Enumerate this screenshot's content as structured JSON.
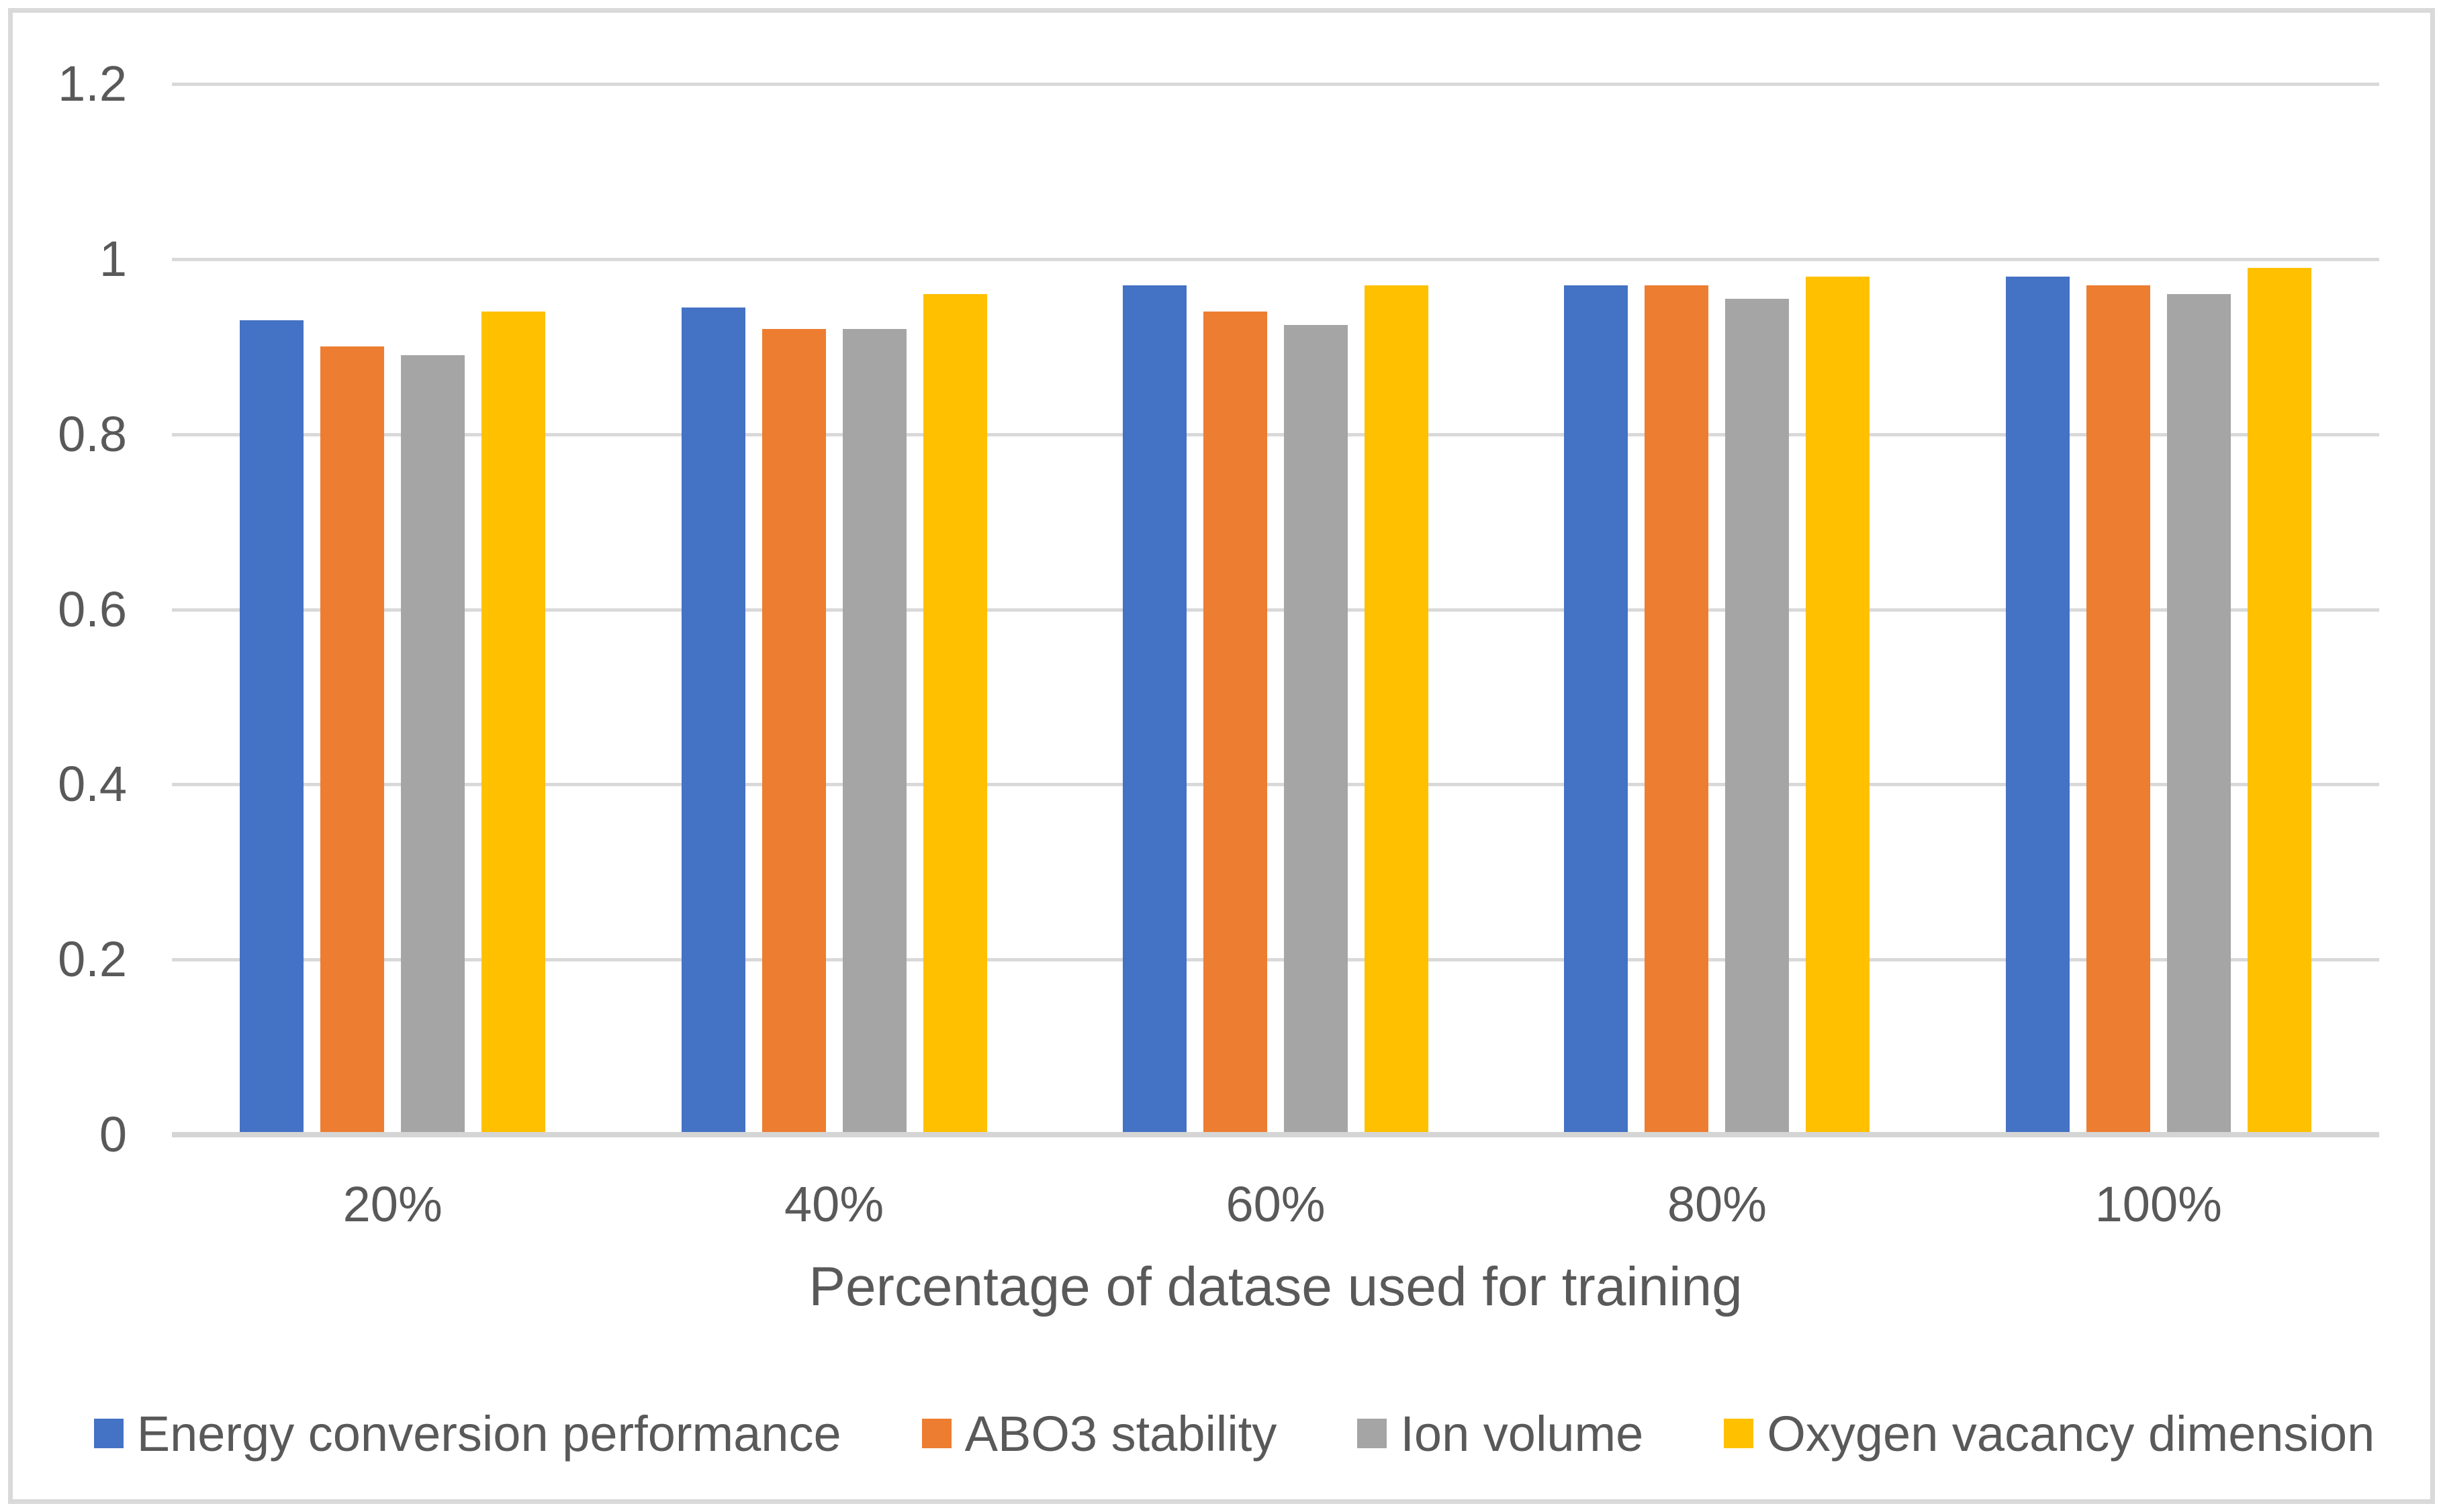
{
  "chart_data": {
    "type": "bar",
    "title": "",
    "xlabel": "Percentage of datase used for training",
    "ylabel": "",
    "categories": [
      "20%",
      "40%",
      "60%",
      "80%",
      "100%"
    ],
    "series": [
      {
        "name": "Energy conversion performance",
        "color": "#4472C4",
        "values": [
          0.93,
          0.945,
          0.97,
          0.97,
          0.98
        ]
      },
      {
        "name": "ABO3 stability",
        "color": "#ED7D31",
        "values": [
          0.9,
          0.92,
          0.94,
          0.97,
          0.97
        ]
      },
      {
        "name": "Ion volume",
        "color": "#A5A5A5",
        "values": [
          0.89,
          0.92,
          0.925,
          0.955,
          0.96
        ]
      },
      {
        "name": "Oxygen vacancy dimension",
        "color": "#FFC000",
        "values": [
          0.94,
          0.96,
          0.97,
          0.98,
          0.99
        ]
      }
    ],
    "y_ticks": [
      {
        "label": "1.2",
        "value": 1.2
      },
      {
        "label": "1",
        "value": 1.0
      },
      {
        "label": "0.8",
        "value": 0.8
      },
      {
        "label": "0.6",
        "value": 0.6
      },
      {
        "label": "0.4",
        "value": 0.4
      },
      {
        "label": "0.2",
        "value": 0.2
      },
      {
        "label": "0",
        "value": 0.0
      }
    ],
    "ylim": [
      0,
      1.2
    ],
    "grid": true,
    "legend_position": "bottom",
    "colors": {
      "text": "#595959",
      "gridline": "#D9D9D9",
      "axis_line": "#D5D5D5",
      "frame_border": "#D9D9D9",
      "background": "#FFFFFF"
    }
  }
}
